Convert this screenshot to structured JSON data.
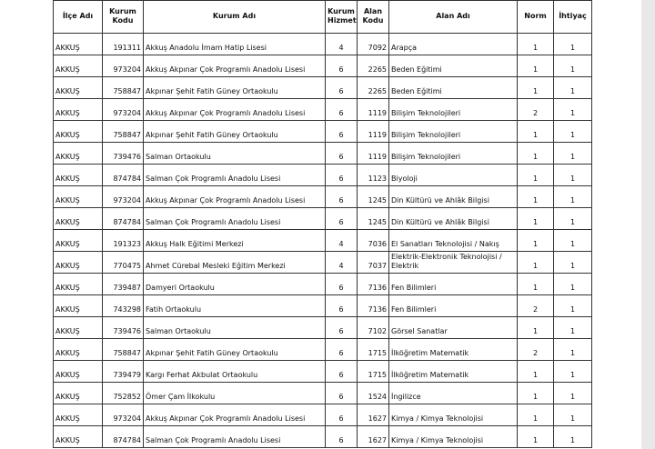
{
  "table": {
    "header": [
      "İlçe Adı",
      "Kurum Kodu",
      "Kurum Adı",
      "Kurum Hizmet",
      "Alan Kodu",
      "Alan Adı",
      "Norm",
      "İhtiyaç"
    ],
    "rows": [
      [
        "AKKUŞ",
        "191311",
        "Akkuş Anadolu İmam Hatip Lisesi",
        "4",
        "7092",
        "Arapça",
        "1",
        "1"
      ],
      [
        "AKKUŞ",
        "973204",
        "Akkuş Akpınar Çok Programlı Anadolu Lisesi",
        "6",
        "2265",
        "Beden Eğitimi",
        "1",
        "1"
      ],
      [
        "AKKUŞ",
        "758847",
        "Akpınar Şehit Fatih Güney Ortaokulu",
        "6",
        "2265",
        "Beden Eğitimi",
        "1",
        "1"
      ],
      [
        "AKKUŞ",
        "973204",
        "Akkuş Akpınar Çok Programlı Anadolu Lisesi",
        "6",
        "1119",
        "Bilişim Teknolojileri",
        "2",
        "1"
      ],
      [
        "AKKUŞ",
        "758847",
        "Akpınar Şehit Fatih Güney Ortaokulu",
        "6",
        "1119",
        "Bilişim Teknolojileri",
        "1",
        "1"
      ],
      [
        "AKKUŞ",
        "739476",
        "Salman Ortaokulu",
        "6",
        "1119",
        "Bilişim Teknolojileri",
        "1",
        "1"
      ],
      [
        "AKKUŞ",
        "874784",
        "Salman Çok Programlı Anadolu Lisesi",
        "6",
        "1123",
        "Biyoloji",
        "1",
        "1"
      ],
      [
        "AKKUŞ",
        "973204",
        "Akkuş Akpınar Çok Programlı Anadolu Lisesi",
        "6",
        "1245",
        "Din Kültürü ve Ahlâk Bilgisi",
        "1",
        "1"
      ],
      [
        "AKKUŞ",
        "874784",
        "Salman Çok Programlı Anadolu Lisesi",
        "6",
        "1245",
        "Din Kültürü ve Ahlâk Bilgisi",
        "1",
        "1"
      ],
      [
        "AKKUŞ",
        "191323",
        "Akkuş Halk Eğitimi Merkezi",
        "4",
        "7036",
        "El Sanatları Teknolojisi / Nakış",
        "1",
        "1"
      ],
      [
        "AKKUŞ",
        "770475",
        "Ahmet Cürebal Mesleki Eğitim Merkezi",
        "4",
        "7037",
        "Elektrik-Elektronik Teknolojisi / Elektrik",
        "1",
        "1"
      ],
      [
        "AKKUŞ",
        "739487",
        "Damyeri Ortaokulu",
        "6",
        "7136",
        "Fen Bilimleri",
        "1",
        "1"
      ],
      [
        "AKKUŞ",
        "743298",
        "Fatih Ortaokulu",
        "6",
        "7136",
        "Fen Bilimleri",
        "2",
        "1"
      ],
      [
        "AKKUŞ",
        "739476",
        "Salman Ortaokulu",
        "6",
        "7102",
        "Görsel Sanatlar",
        "1",
        "1"
      ],
      [
        "AKKUŞ",
        "758847",
        "Akpınar Şehit Fatih Güney Ortaokulu",
        "6",
        "1715",
        "İlköğretim Matematik",
        "2",
        "1"
      ],
      [
        "AKKUŞ",
        "739479",
        "Kargı Ferhat Akbulat Ortaokulu",
        "6",
        "1715",
        "İlköğretim Matematik",
        "1",
        "1"
      ],
      [
        "AKKUŞ",
        "752852",
        "Ömer Çam İlkokulu",
        "6",
        "1524",
        "İngilizce",
        "1",
        "1"
      ],
      [
        "AKKUŞ",
        "973204",
        "Akkuş Akpınar Çok Programlı Anadolu Lisesi",
        "6",
        "1627",
        "Kimya / Kimya Teknolojisi",
        "1",
        "1"
      ],
      [
        "AKKUŞ",
        "874784",
        "Salman Çok Programlı Anadolu Lisesi",
        "6",
        "1627",
        "Kimya / Kimya Teknolojisi",
        "1",
        "1"
      ]
    ]
  }
}
